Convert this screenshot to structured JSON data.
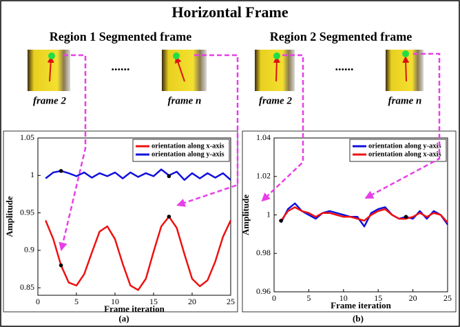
{
  "title": "Horizontal Frame",
  "panels": [
    {
      "heading": "Region 1 Segmented frame",
      "frames": [
        "frame 2",
        "frame n"
      ],
      "ellipsis": "......",
      "caption": "(a)"
    },
    {
      "heading": "Region 2 Segmented frame",
      "frames": [
        "frame 2",
        "frame n"
      ],
      "ellipsis": "......",
      "caption": "(b)"
    }
  ],
  "chart_data": [
    {
      "type": "line",
      "xlabel": "Frame iteration",
      "ylabel": "Amplitude",
      "x": [
        1,
        2,
        3,
        4,
        5,
        6,
        7,
        8,
        9,
        10,
        11,
        12,
        13,
        14,
        15,
        16,
        17,
        18,
        19,
        20,
        21,
        22,
        23,
        24,
        25
      ],
      "xlim": [
        0,
        25
      ],
      "xticks": [
        0,
        5,
        10,
        15,
        20,
        25
      ],
      "ylim": [
        0.84,
        1.05
      ],
      "yticks": [
        0.85,
        0.9,
        0.95,
        1,
        1.05
      ],
      "legend": "upper right",
      "grid": false,
      "series": [
        {
          "name": "orientation along x-axis",
          "color": "#ee1111",
          "values": [
            0.94,
            0.915,
            0.88,
            0.857,
            0.853,
            0.868,
            0.897,
            0.925,
            0.932,
            0.915,
            0.882,
            0.853,
            0.847,
            0.862,
            0.898,
            0.932,
            0.945,
            0.93,
            0.895,
            0.862,
            0.852,
            0.86,
            0.885,
            0.918,
            0.94
          ]
        },
        {
          "name": "orientation along y-axis",
          "color": "#1010dd",
          "values": [
            0.996,
            1.004,
            1.006,
            1.003,
            0.999,
            1.004,
            0.997,
            1.003,
            0.999,
            1.004,
            0.996,
            1.004,
            0.998,
            1.003,
            0.999,
            1.008,
            1.0,
            1.005,
            0.994,
            1.003,
            0.996,
            1.003,
            0.997,
            1.003,
            0.994
          ]
        }
      ],
      "markers": [
        {
          "x": 3,
          "y": 1.006
        },
        {
          "x": 3,
          "y": 0.88
        },
        {
          "x": 17,
          "y": 0.999
        },
        {
          "x": 17,
          "y": 0.945
        }
      ]
    },
    {
      "type": "line",
      "xlabel": "Frame iteration",
      "ylabel": "Amplitude",
      "x": [
        1,
        2,
        3,
        4,
        5,
        6,
        7,
        8,
        9,
        10,
        11,
        12,
        13,
        14,
        15,
        16,
        17,
        18,
        19,
        20,
        21,
        22,
        23,
        24,
        25
      ],
      "xlim": [
        0,
        25
      ],
      "xticks": [
        0,
        5,
        10,
        15,
        20,
        25
      ],
      "ylim": [
        0.96,
        1.04
      ],
      "yticks": [
        0.96,
        0.98,
        1,
        1.02,
        1.04
      ],
      "legend": "upper right",
      "grid": false,
      "series": [
        {
          "name": "orientation along y-axis",
          "color": "#1010dd",
          "values": [
            0.996,
            1.003,
            1.006,
            1.002,
            1.0,
            0.998,
            1.001,
            1.002,
            1.001,
            1.0,
            0.999,
            0.999,
            0.994,
            1.001,
            1.003,
            1.004,
            1.0,
            0.998,
            0.999,
            0.998,
            1.002,
            0.998,
            1.002,
            1.0,
            0.995
          ]
        },
        {
          "name": "orientation along x-axis",
          "color": "#ee1111",
          "values": [
            0.997,
            1.002,
            1.004,
            1.002,
            1.001,
            0.999,
            1.001,
            1.001,
            1.0,
            0.999,
            0.999,
            0.998,
            0.997,
            1.0,
            1.002,
            1.003,
            1.0,
            0.998,
            0.998,
            0.999,
            1.001,
            0.999,
            1.001,
            1.0,
            0.996
          ]
        }
      ],
      "markers": [
        {
          "x": 1,
          "y": 0.997
        },
        {
          "x": 19,
          "y": 0.999
        }
      ]
    }
  ]
}
